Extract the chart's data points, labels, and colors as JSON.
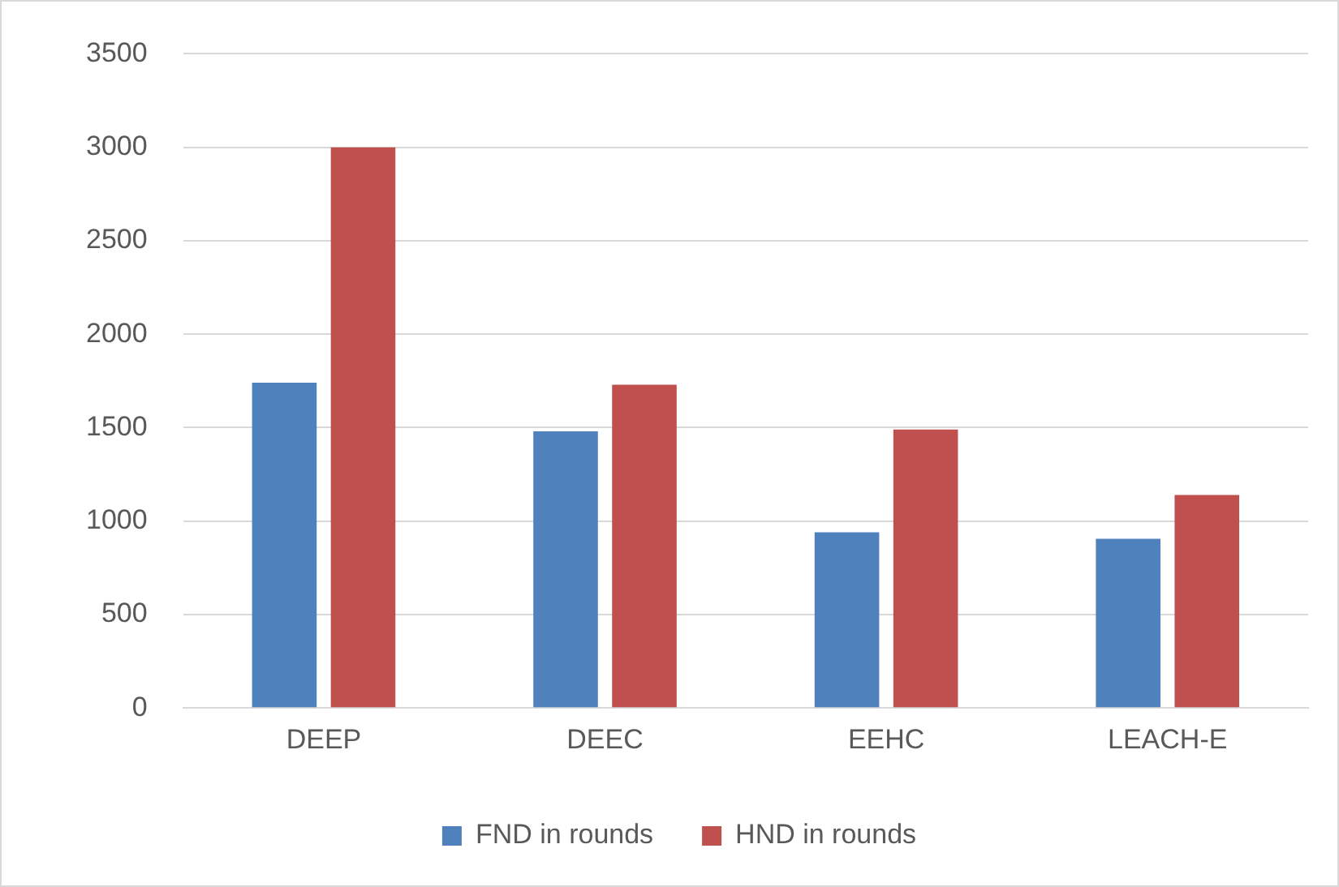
{
  "chart_data": {
    "type": "bar",
    "categories": [
      "DEEP",
      "DEEC",
      "EEHC",
      "LEACH-E"
    ],
    "series": [
      {
        "name": "FND in rounds",
        "color": "#4f81bd",
        "values": [
          1740,
          1480,
          940,
          905
        ]
      },
      {
        "name": "HND in rounds",
        "color": "#c0504d",
        "values": [
          3000,
          1730,
          1490,
          1140
        ]
      }
    ],
    "ylim": [
      0,
      3500
    ],
    "yticks": [
      0,
      500,
      1000,
      1500,
      2000,
      2500,
      3000,
      3500
    ],
    "grid": "y",
    "legend": "bottom"
  }
}
